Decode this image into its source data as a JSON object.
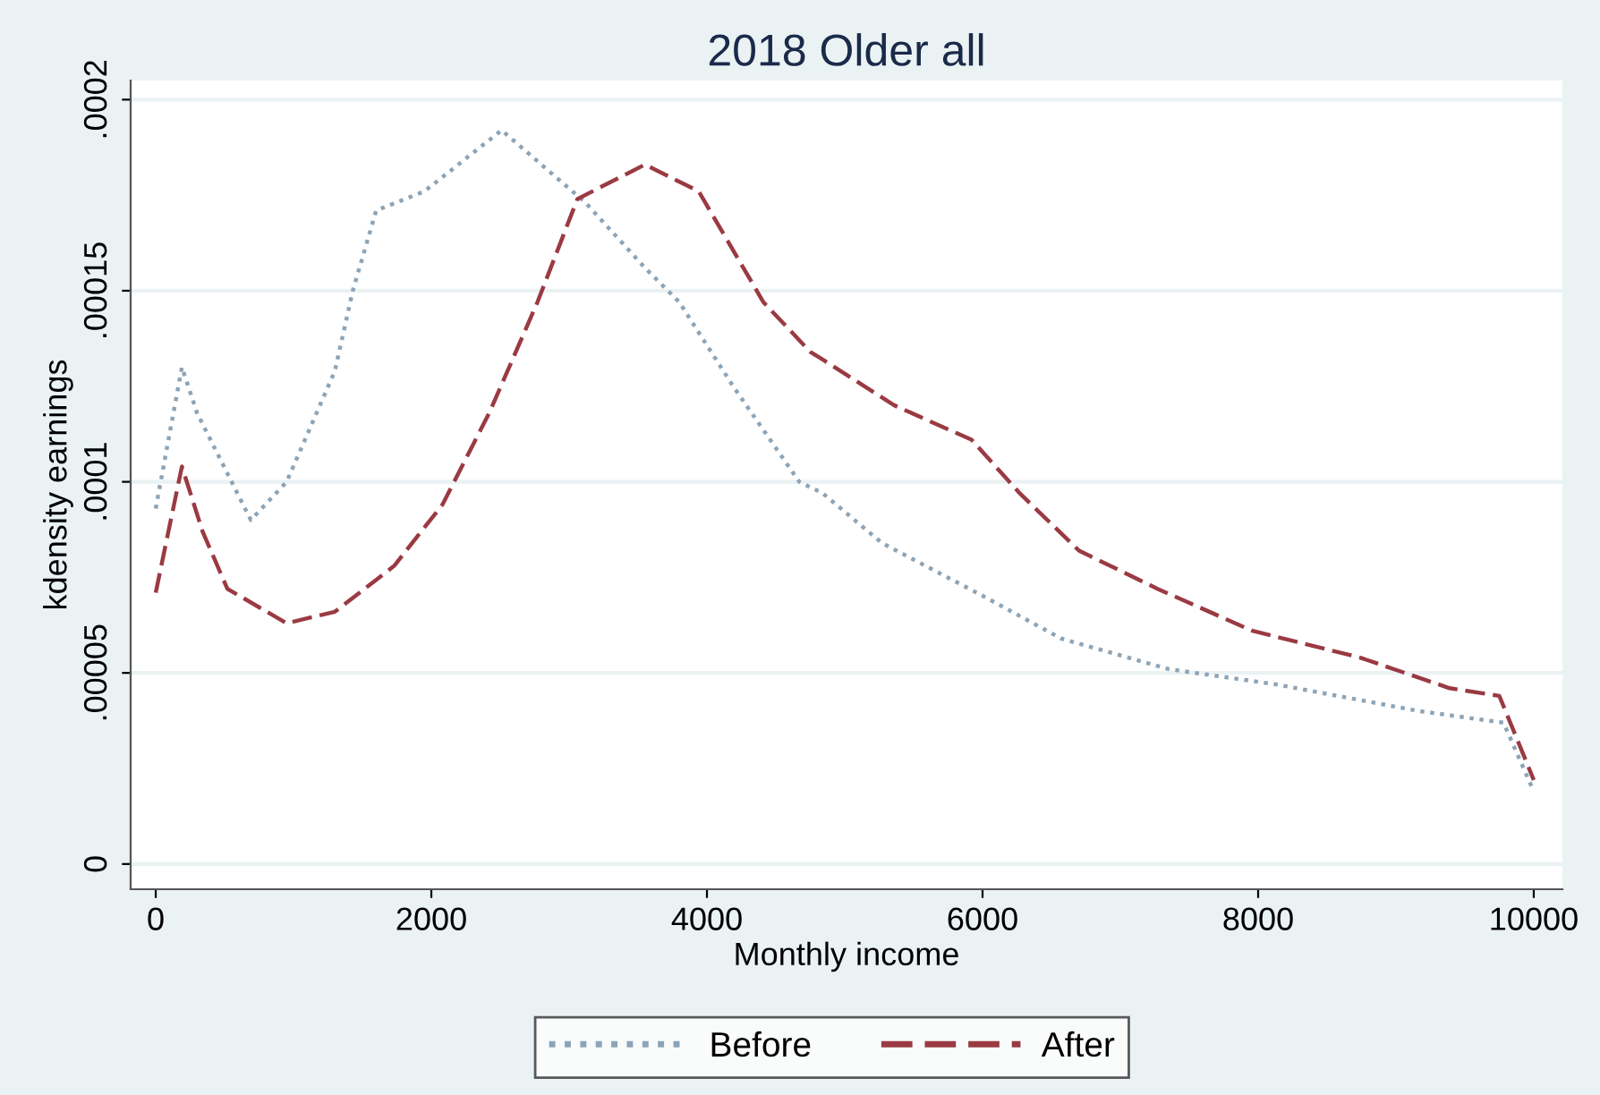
{
  "chart_data": {
    "type": "line",
    "title": "2018 Older all",
    "xlabel": "Monthly income",
    "ylabel": "kdensity earnings",
    "xlim": [
      -182,
      10208
    ],
    "ylim": [
      -6.6e-06,
      0.000205
    ],
    "xticks": [
      0,
      2000,
      4000,
      6000,
      8000,
      10000
    ],
    "yticks": [
      0,
      {
        "value": 5e-05,
        "label": ".00005"
      },
      {
        "value": 0.0001,
        "label": ".0001"
      },
      {
        "value": 0.00015,
        "label": ".00015"
      },
      {
        "value": 0.0002,
        "label": ".0002"
      }
    ],
    "grid": "y",
    "legend": "bottom",
    "series": [
      {
        "name": "Before",
        "color": "#8da4b6",
        "line_style": "dotted",
        "x": [
          0,
          190,
          300,
          690,
          950,
          1300,
          1430,
          1600,
          1950,
          2510,
          3120,
          3550,
          3800,
          4190,
          4670,
          4840,
          5270,
          6010,
          6570,
          7350,
          8130,
          9170,
          9780,
          10000
        ],
        "values": [
          9.3e-05,
          0.00013,
          0.000118,
          9e-05,
          0.0001,
          0.000129,
          0.00015,
          0.000171,
          0.000176,
          0.000192,
          0.000173,
          0.000156,
          0.000147,
          0.000125,
          0.0001,
          9.7e-05,
          8.4e-05,
          7e-05,
          5.9e-05,
          5.1e-05,
          4.7e-05,
          4e-05,
          3.7e-05,
          1.9e-05
        ]
      },
      {
        "name": "After",
        "color": "#9a3a42",
        "line_style": "dashed",
        "x": [
          0,
          190,
          340,
          520,
          950,
          1300,
          1730,
          2080,
          2420,
          2770,
          3060,
          3550,
          3940,
          4410,
          4750,
          4840,
          5360,
          5920,
          6270,
          6700,
          7270,
          7960,
          8740,
          9390,
          9750,
          10000
        ],
        "values": [
          7.1e-05,
          0.000104,
          8.7e-05,
          7.2e-05,
          6.3e-05,
          6.6e-05,
          7.8e-05,
          9.4e-05,
          0.000118,
          0.000147,
          0.000174,
          0.000183,
          0.000176,
          0.000147,
          0.000134,
          0.000132,
          0.00012,
          0.000111,
          9.7e-05,
          8.2e-05,
          7.2e-05,
          6.1e-05,
          5.4e-05,
          4.6e-05,
          4.4e-05,
          2.2e-05
        ]
      }
    ]
  }
}
